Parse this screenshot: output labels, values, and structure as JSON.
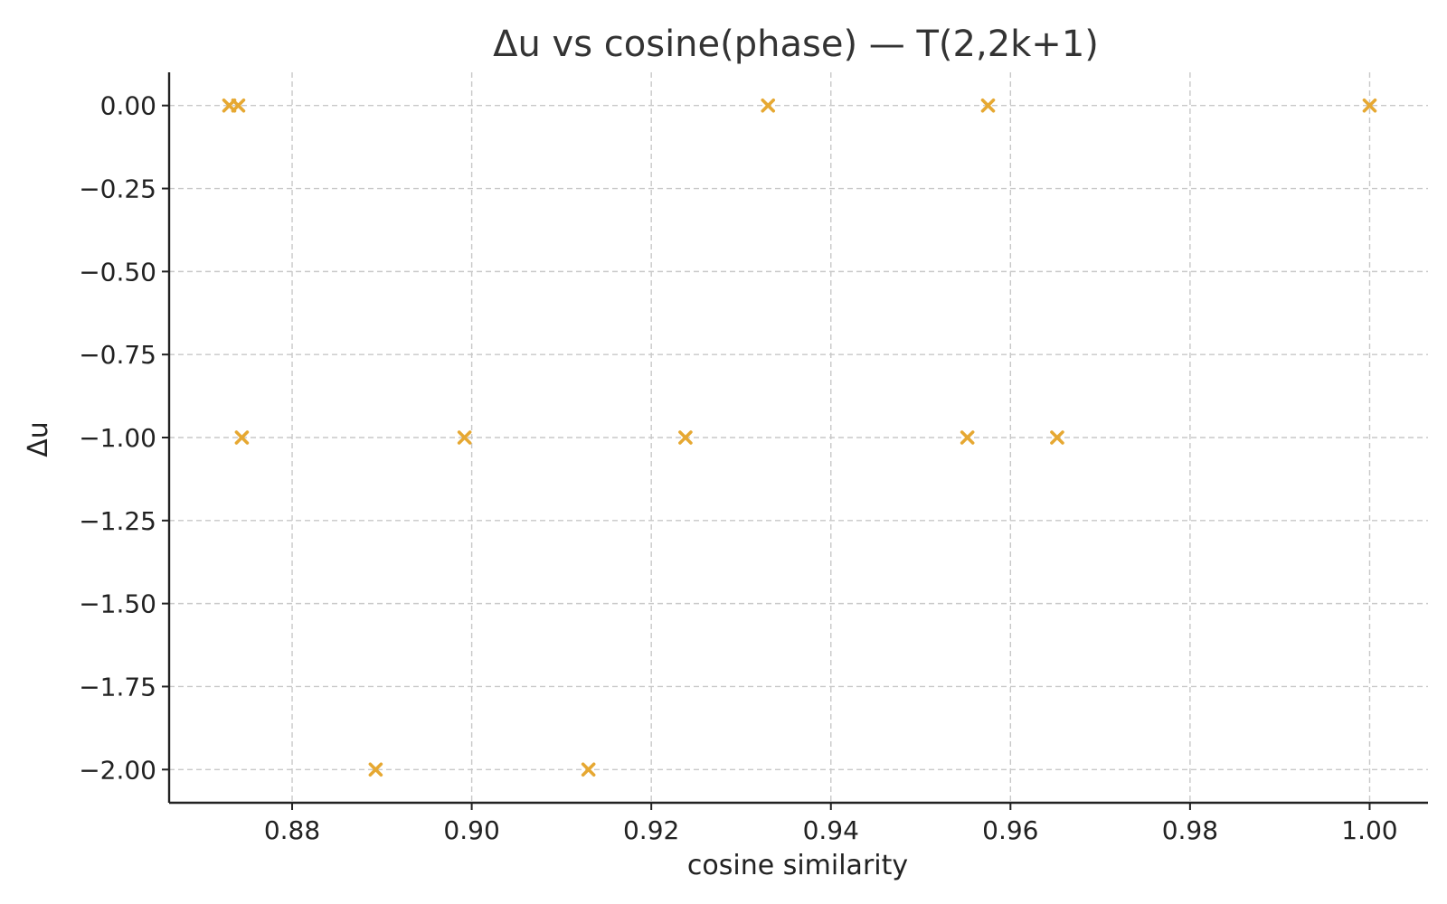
{
  "chart_data": {
    "type": "scatter",
    "title": "Δu vs cosine(phase) — T(2,2k+1)",
    "xlabel": "cosine similarity",
    "ylabel": "Δu",
    "xlim": [
      0.8663,
      1.0065
    ],
    "ylim": [
      -2.1,
      0.1
    ],
    "xticks": [
      0.88,
      0.9,
      0.92,
      0.94,
      0.96,
      0.98,
      1.0
    ],
    "xtick_labels": [
      "0.88",
      "0.90",
      "0.92",
      "0.94",
      "0.96",
      "0.98",
      "1.00"
    ],
    "yticks": [
      0.0,
      -0.25,
      -0.5,
      -0.75,
      -1.0,
      -1.25,
      -1.5,
      -1.75,
      -2.0
    ],
    "ytick_labels": [
      "0.00",
      "−0.25",
      "−0.50",
      "−0.75",
      "−1.00",
      "−1.25",
      "−1.50",
      "−1.75",
      "−2.00"
    ],
    "grid": true,
    "marker": "x",
    "series_color": "#E6A832",
    "series": [
      {
        "points": [
          {
            "x": 0.873,
            "y": 0.0
          },
          {
            "x": 0.874,
            "y": 0.0
          },
          {
            "x": 0.933,
            "y": 0.0
          },
          {
            "x": 0.9575,
            "y": 0.0
          },
          {
            "x": 1.0,
            "y": 0.0
          },
          {
            "x": 0.8744,
            "y": -1.0
          },
          {
            "x": 0.8992,
            "y": -1.0
          },
          {
            "x": 0.9238,
            "y": -1.0
          },
          {
            "x": 0.9552,
            "y": -1.0
          },
          {
            "x": 0.9652,
            "y": -1.0
          },
          {
            "x": 0.8893,
            "y": -2.0
          },
          {
            "x": 0.913,
            "y": -2.0
          }
        ]
      }
    ]
  }
}
